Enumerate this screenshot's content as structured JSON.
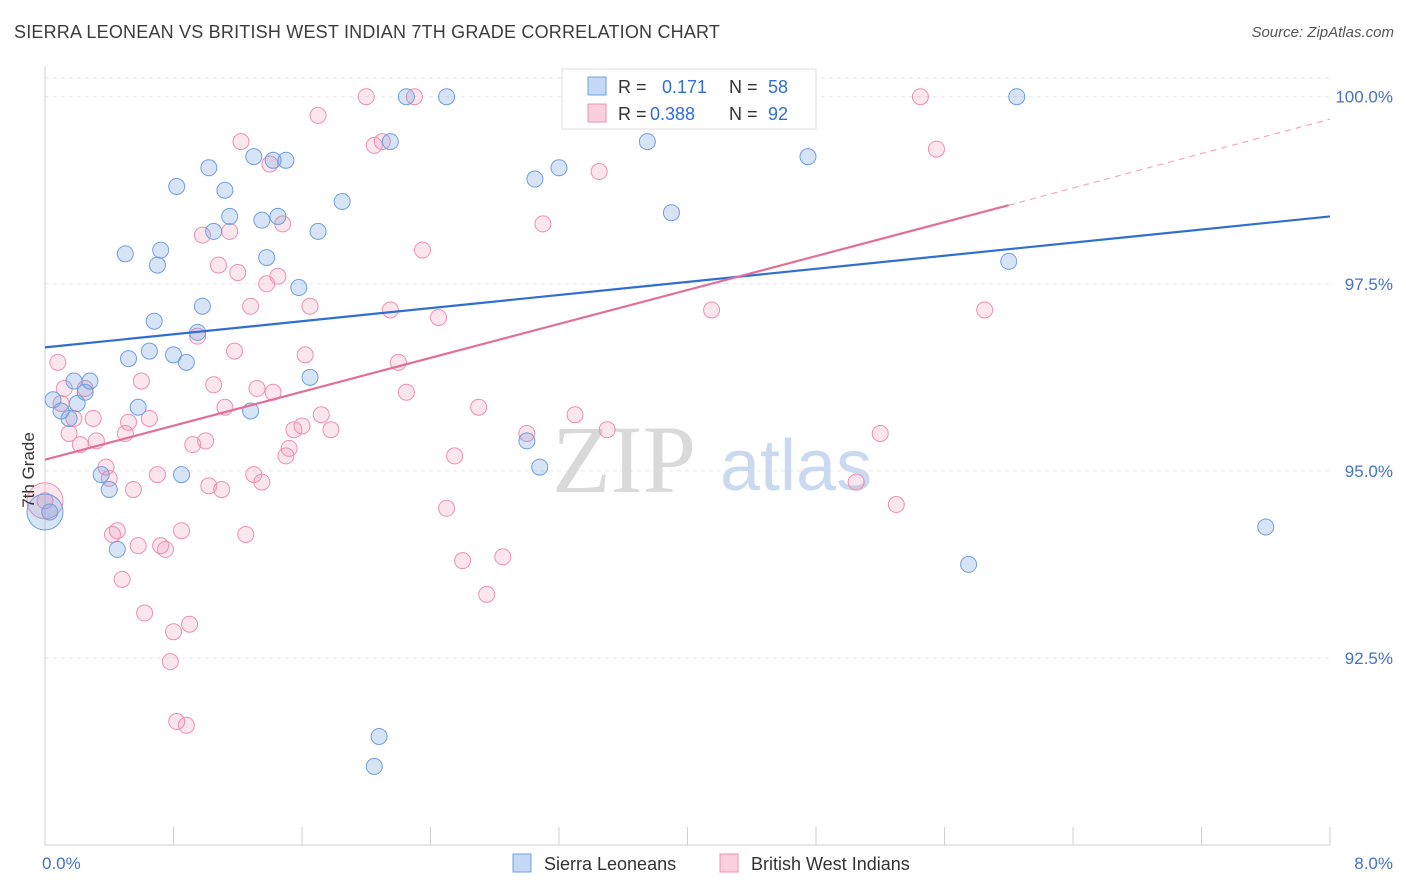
{
  "title": "SIERRA LEONEAN VS BRITISH WEST INDIAN 7TH GRADE CORRELATION CHART",
  "source": "Source: ZipAtlas.com",
  "watermark": {
    "zip": "ZIP",
    "atlas": "atlas"
  },
  "legend": {
    "r_label": "R =",
    "n_label": "N =",
    "rows": [
      {
        "r": "0.171",
        "n": "58"
      },
      {
        "r": "0.388",
        "n": "92"
      }
    ]
  },
  "chart_data": {
    "type": "scatter",
    "title": "SIERRA LEONEAN VS BRITISH WEST INDIAN 7TH GRADE CORRELATION CHART",
    "xlabel": "",
    "ylabel": "7th Grade",
    "xlim": [
      0,
      8
    ],
    "ylim": [
      90.0,
      100.25
    ],
    "x_tick_labels": [
      "0.0%",
      "8.0%"
    ],
    "y_ticks": [
      92.5,
      95.0,
      97.5,
      100.0
    ],
    "y_tick_labels": [
      "92.5%",
      "95.0%",
      "97.5%",
      "100.0%"
    ],
    "grid": true,
    "legend_position": "top-center",
    "colors": {
      "blue": "#6f9fe0",
      "blue_line": "#2f6fd0",
      "pink": "#ef8fb0",
      "pink_line": "#e0709a"
    },
    "series": [
      {
        "name": "Sierra Leoneans",
        "color": "#6f9fe0",
        "trend": {
          "x0": 0.0,
          "y0": 96.65,
          "x1": 8.0,
          "y1": 98.4
        },
        "points": [
          [
            0.03,
            94.45
          ],
          [
            0.05,
            95.95
          ],
          [
            0.1,
            95.8
          ],
          [
            0.15,
            95.7
          ],
          [
            0.18,
            96.2
          ],
          [
            0.2,
            95.9
          ],
          [
            0.25,
            96.05
          ],
          [
            0.28,
            96.2
          ],
          [
            0.35,
            94.95
          ],
          [
            0.4,
            94.75
          ],
          [
            0.45,
            93.95
          ],
          [
            0.5,
            97.9
          ],
          [
            0.52,
            96.5
          ],
          [
            0.58,
            95.85
          ],
          [
            0.65,
            96.6
          ],
          [
            0.68,
            97.0
          ],
          [
            0.7,
            97.75
          ],
          [
            0.72,
            97.95
          ],
          [
            0.8,
            96.55
          ],
          [
            0.82,
            98.8
          ],
          [
            0.85,
            94.95
          ],
          [
            0.88,
            96.45
          ],
          [
            0.95,
            96.85
          ],
          [
            0.98,
            97.2
          ],
          [
            1.02,
            99.05
          ],
          [
            1.05,
            98.2
          ],
          [
            1.12,
            98.75
          ],
          [
            1.15,
            98.4
          ],
          [
            1.28,
            95.8
          ],
          [
            1.3,
            99.2
          ],
          [
            1.35,
            98.35
          ],
          [
            1.38,
            97.85
          ],
          [
            1.42,
            99.15
          ],
          [
            1.45,
            98.4
          ],
          [
            1.5,
            99.15
          ],
          [
            1.58,
            97.45
          ],
          [
            1.65,
            96.25
          ],
          [
            1.7,
            98.2
          ],
          [
            1.85,
            98.6
          ],
          [
            2.05,
            91.05
          ],
          [
            2.08,
            91.45
          ],
          [
            2.15,
            99.4
          ],
          [
            2.25,
            100.0
          ],
          [
            2.5,
            100.0
          ],
          [
            3.0,
            95.4
          ],
          [
            3.05,
            98.9
          ],
          [
            3.08,
            95.05
          ],
          [
            3.2,
            99.05
          ],
          [
            3.75,
            99.4
          ],
          [
            3.9,
            98.45
          ],
          [
            4.1,
            100.0
          ],
          [
            4.35,
            100.0
          ],
          [
            4.75,
            99.2
          ],
          [
            5.75,
            93.75
          ],
          [
            6.0,
            97.8
          ],
          [
            6.05,
            100.0
          ],
          [
            7.6,
            94.25
          ],
          [
            0.0,
            94.45
          ]
        ]
      },
      {
        "name": "British West Indians",
        "color": "#ef8fb0",
        "trend": {
          "x0": 0.0,
          "y0": 95.15,
          "x1": 6.0,
          "y1": 98.55
        },
        "trend_dashed_to": {
          "x": 8.0,
          "y": 99.7
        },
        "points": [
          [
            0.0,
            94.6
          ],
          [
            0.08,
            96.45
          ],
          [
            0.1,
            95.9
          ],
          [
            0.12,
            96.1
          ],
          [
            0.15,
            95.5
          ],
          [
            0.18,
            95.7
          ],
          [
            0.22,
            95.35
          ],
          [
            0.25,
            96.1
          ],
          [
            0.3,
            95.7
          ],
          [
            0.32,
            95.4
          ],
          [
            0.38,
            95.05
          ],
          [
            0.4,
            94.9
          ],
          [
            0.42,
            94.15
          ],
          [
            0.45,
            94.2
          ],
          [
            0.48,
            93.55
          ],
          [
            0.5,
            95.5
          ],
          [
            0.52,
            95.65
          ],
          [
            0.55,
            94.75
          ],
          [
            0.58,
            94.0
          ],
          [
            0.6,
            96.2
          ],
          [
            0.62,
            93.1
          ],
          [
            0.65,
            95.7
          ],
          [
            0.7,
            94.95
          ],
          [
            0.72,
            94.0
          ],
          [
            0.75,
            93.95
          ],
          [
            0.78,
            92.45
          ],
          [
            0.8,
            92.85
          ],
          [
            0.82,
            91.65
          ],
          [
            0.85,
            94.2
          ],
          [
            0.88,
            91.6
          ],
          [
            0.9,
            92.95
          ],
          [
            0.92,
            95.35
          ],
          [
            0.95,
            96.8
          ],
          [
            0.98,
            98.15
          ],
          [
            1.0,
            95.4
          ],
          [
            1.02,
            94.8
          ],
          [
            1.05,
            96.15
          ],
          [
            1.08,
            97.75
          ],
          [
            1.1,
            94.75
          ],
          [
            1.12,
            95.85
          ],
          [
            1.15,
            98.2
          ],
          [
            1.18,
            96.6
          ],
          [
            1.2,
            97.65
          ],
          [
            1.22,
            99.4
          ],
          [
            1.25,
            94.15
          ],
          [
            1.28,
            97.2
          ],
          [
            1.3,
            94.95
          ],
          [
            1.32,
            96.1
          ],
          [
            1.35,
            94.85
          ],
          [
            1.38,
            97.5
          ],
          [
            1.4,
            99.1
          ],
          [
            1.42,
            96.05
          ],
          [
            1.45,
            97.6
          ],
          [
            1.48,
            98.3
          ],
          [
            1.5,
            95.2
          ],
          [
            1.52,
            95.3
          ],
          [
            1.55,
            95.55
          ],
          [
            1.6,
            95.6
          ],
          [
            1.62,
            96.55
          ],
          [
            1.65,
            97.2
          ],
          [
            1.7,
            99.75
          ],
          [
            1.72,
            95.75
          ],
          [
            1.78,
            95.55
          ],
          [
            2.0,
            100.0
          ],
          [
            2.05,
            99.35
          ],
          [
            2.1,
            99.4
          ],
          [
            2.15,
            97.15
          ],
          [
            2.2,
            96.45
          ],
          [
            2.25,
            96.05
          ],
          [
            2.3,
            100.0
          ],
          [
            2.35,
            97.95
          ],
          [
            2.45,
            97.05
          ],
          [
            2.5,
            94.5
          ],
          [
            2.55,
            95.2
          ],
          [
            2.6,
            93.8
          ],
          [
            2.7,
            95.85
          ],
          [
            2.75,
            93.35
          ],
          [
            2.85,
            93.85
          ],
          [
            3.0,
            95.5
          ],
          [
            3.1,
            98.3
          ],
          [
            3.3,
            95.75
          ],
          [
            3.45,
            99.0
          ],
          [
            3.5,
            95.55
          ],
          [
            4.15,
            97.15
          ],
          [
            4.35,
            100.0
          ],
          [
            5.05,
            94.85
          ],
          [
            5.2,
            95.5
          ],
          [
            5.3,
            94.55
          ],
          [
            5.45,
            100.0
          ],
          [
            5.55,
            99.3
          ],
          [
            5.85,
            97.15
          ],
          [
            0.0,
            94.6
          ]
        ]
      }
    ]
  }
}
